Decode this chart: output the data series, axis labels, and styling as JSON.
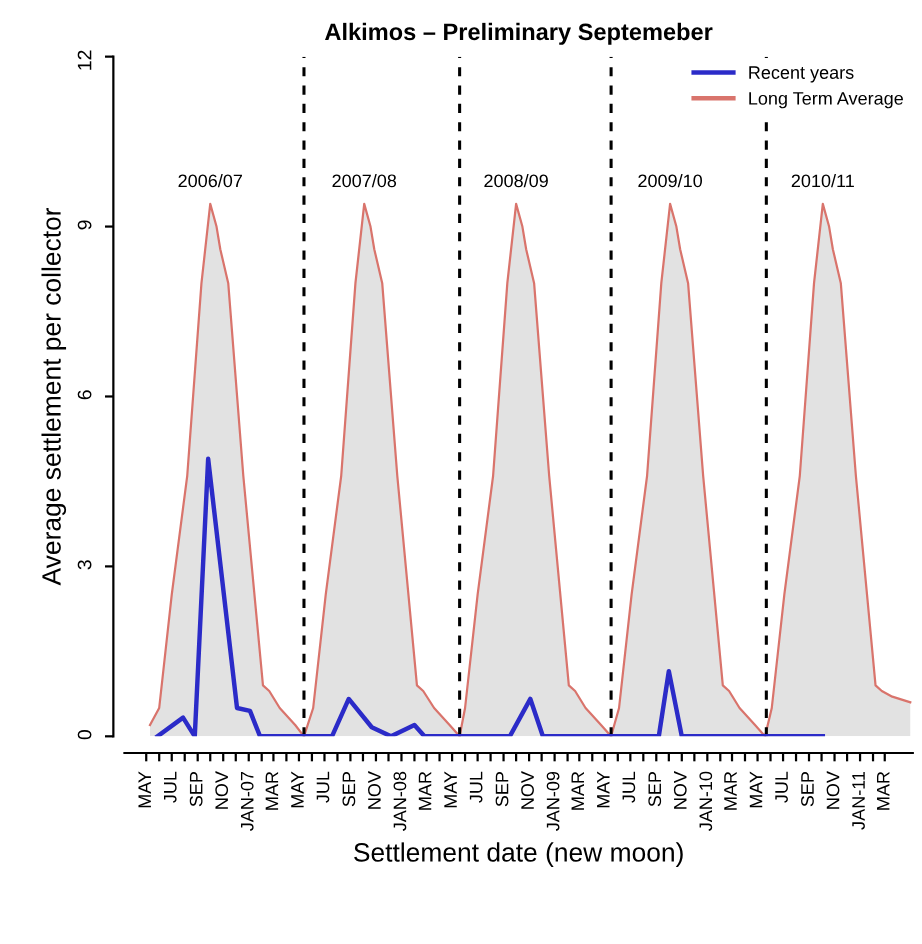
{
  "chart_data": {
    "type": "line",
    "title": "Alkimos – Preliminary Septemeber",
    "xlabel": "Settlement date (new moon)",
    "ylabel": "Average settlement per collector",
    "series": [
      {
        "name": "Long Term Average",
        "type": "area",
        "color": "#d9746c",
        "x": [
          "2006-05-10",
          "2006-06-01",
          "2006-07-01",
          "2006-08-07",
          "2006-09-10",
          "2006-10-01",
          "2006-10-16",
          "2006-10-25",
          "2006-11-13",
          "2006-12-19",
          "2007-02-04",
          "2007-02-19",
          "2007-03-16",
          "2007-04-22",
          "2007-05-13",
          "2007-06-04",
          "2007-07-04",
          "2007-08-10",
          "2007-09-13",
          "2007-10-04",
          "2007-10-19",
          "2007-10-28",
          "2007-11-16",
          "2007-12-22",
          "2008-02-07",
          "2008-02-22",
          "2008-03-19",
          "2008-04-25",
          "2008-05-19",
          "2008-06-01",
          "2008-07-01",
          "2008-08-07",
          "2008-09-10",
          "2008-10-01",
          "2008-10-16",
          "2008-10-25",
          "2008-11-13",
          "2008-12-19",
          "2009-02-04",
          "2009-02-19",
          "2009-03-16",
          "2009-04-22",
          "2009-05-16",
          "2009-06-04",
          "2009-07-04",
          "2009-08-10",
          "2009-09-13",
          "2009-10-04",
          "2009-10-19",
          "2009-10-28",
          "2009-11-16",
          "2009-12-22",
          "2010-02-07",
          "2010-02-22",
          "2010-03-19",
          "2010-04-25",
          "2010-05-19",
          "2010-06-04",
          "2010-07-04",
          "2010-08-10",
          "2010-09-13",
          "2010-10-04",
          "2010-10-19",
          "2010-10-28",
          "2010-11-16",
          "2010-12-22",
          "2011-02-07",
          "2011-02-22",
          "2011-03-19",
          "2011-05-01"
        ],
        "values": [
          0.2,
          0.5,
          2.5,
          4.6,
          8.0,
          9.4,
          9.0,
          8.6,
          8.0,
          4.6,
          0.9,
          0.8,
          0.5,
          0.2,
          0.0,
          0.5,
          2.5,
          4.6,
          8.0,
          9.4,
          9.0,
          8.6,
          8.0,
          4.6,
          0.9,
          0.8,
          0.5,
          0.2,
          0.0,
          0.5,
          2.5,
          4.6,
          8.0,
          9.4,
          9.0,
          8.6,
          8.0,
          4.6,
          0.9,
          0.8,
          0.5,
          0.2,
          0.0,
          0.5,
          2.5,
          4.6,
          8.0,
          9.4,
          9.0,
          8.6,
          8.0,
          4.6,
          0.9,
          0.8,
          0.5,
          0.2,
          0.0,
          0.5,
          2.5,
          4.6,
          8.0,
          9.4,
          9.0,
          8.6,
          8.0,
          4.6,
          0.9,
          0.8,
          0.7,
          0.6
        ]
      },
      {
        "name": "Recent years",
        "type": "line",
        "color": "#2b2bc8",
        "x": [
          "2006-05-28",
          "2006-07-28",
          "2006-08-25",
          "2006-09-26",
          "2006-12-04",
          "2007-01-04",
          "2007-01-28",
          "2007-07-19",
          "2007-08-28",
          "2007-10-22",
          "2007-12-07",
          "2008-02-01",
          "2008-02-25",
          "2008-09-16",
          "2008-11-04",
          "2008-12-04",
          "2009-09-07",
          "2009-10-01",
          "2009-11-01",
          "2010-10-04"
        ],
        "values": [
          0.0,
          0.33,
          0.0,
          4.9,
          0.5,
          0.45,
          0.0,
          0.0,
          0.66,
          0.16,
          0.0,
          0.2,
          0.0,
          0.0,
          0.66,
          0.0,
          0.0,
          1.15,
          0.0,
          0.0
        ]
      }
    ],
    "ref_lines": [
      {
        "axis": "x",
        "value": "2007-05-13",
        "line_style": "dashed",
        "color": "#000000"
      },
      {
        "axis": "x",
        "value": "2008-05-19",
        "line_style": "dashed",
        "color": "#000000"
      },
      {
        "axis": "x",
        "value": "2009-05-16",
        "line_style": "dashed",
        "color": "#000000"
      },
      {
        "axis": "x",
        "value": "2010-05-22",
        "line_style": "dashed",
        "color": "#000000"
      }
    ],
    "annotations": [
      "2006/07",
      "2007/08",
      "2008/09",
      "2009/10",
      "2010/11"
    ],
    "xlim": [
      "2006-03-10",
      "2011-05-07"
    ],
    "ylim": [
      0,
      12
    ],
    "yticks": [
      0,
      3,
      6,
      9,
      12
    ],
    "xticks": [
      {
        "value": "2006-05-01",
        "label": "MAY"
      },
      {
        "value": "2006-06-01",
        "label": null
      },
      {
        "value": "2006-07-01",
        "label": "JUL"
      },
      {
        "value": "2006-08-01",
        "label": null
      },
      {
        "value": "2006-09-01",
        "label": "SEP"
      },
      {
        "value": "2006-10-01",
        "label": null
      },
      {
        "value": "2006-11-01",
        "label": "NOV"
      },
      {
        "value": "2006-12-01",
        "label": null
      },
      {
        "value": "2007-01-01",
        "label": "JAN-07"
      },
      {
        "value": "2007-02-01",
        "label": null
      },
      {
        "value": "2007-03-01",
        "label": "MAR"
      },
      {
        "value": "2007-04-01",
        "label": null
      },
      {
        "value": "2007-05-01",
        "label": "MAY"
      },
      {
        "value": "2007-06-01",
        "label": null
      },
      {
        "value": "2007-07-01",
        "label": "JUL"
      },
      {
        "value": "2007-08-01",
        "label": null
      },
      {
        "value": "2007-09-01",
        "label": "SEP"
      },
      {
        "value": "2007-10-01",
        "label": null
      },
      {
        "value": "2007-11-01",
        "label": "NOV"
      },
      {
        "value": "2007-12-01",
        "label": null
      },
      {
        "value": "2008-01-01",
        "label": "JAN-08"
      },
      {
        "value": "2008-02-01",
        "label": null
      },
      {
        "value": "2008-03-01",
        "label": "MAR"
      },
      {
        "value": "2008-04-01",
        "label": null
      },
      {
        "value": "2008-05-01",
        "label": "MAY"
      },
      {
        "value": "2008-06-01",
        "label": null
      },
      {
        "value": "2008-07-01",
        "label": "JUL"
      },
      {
        "value": "2008-08-01",
        "label": null
      },
      {
        "value": "2008-09-01",
        "label": "SEP"
      },
      {
        "value": "2008-10-01",
        "label": null
      },
      {
        "value": "2008-11-01",
        "label": "NOV"
      },
      {
        "value": "2008-12-01",
        "label": null
      },
      {
        "value": "2009-01-01",
        "label": "JAN-09"
      },
      {
        "value": "2009-02-01",
        "label": null
      },
      {
        "value": "2009-03-01",
        "label": "MAR"
      },
      {
        "value": "2009-04-01",
        "label": null
      },
      {
        "value": "2009-05-01",
        "label": "MAY"
      },
      {
        "value": "2009-06-01",
        "label": null
      },
      {
        "value": "2009-07-01",
        "label": "JUL"
      },
      {
        "value": "2009-08-01",
        "label": null
      },
      {
        "value": "2009-09-01",
        "label": "SEP"
      },
      {
        "value": "2009-10-01",
        "label": null
      },
      {
        "value": "2009-11-01",
        "label": "NOV"
      },
      {
        "value": "2009-12-01",
        "label": null
      },
      {
        "value": "2010-01-01",
        "label": "JAN-10"
      },
      {
        "value": "2010-02-01",
        "label": null
      },
      {
        "value": "2010-03-01",
        "label": "MAR"
      },
      {
        "value": "2010-04-01",
        "label": null
      },
      {
        "value": "2010-05-01",
        "label": "MAY"
      },
      {
        "value": "2010-06-01",
        "label": null
      },
      {
        "value": "2010-07-01",
        "label": "JUL"
      },
      {
        "value": "2010-08-01",
        "label": null
      },
      {
        "value": "2010-09-01",
        "label": "SEP"
      },
      {
        "value": "2010-10-01",
        "label": null
      },
      {
        "value": "2010-11-01",
        "label": "NOV"
      },
      {
        "value": "2010-12-01",
        "label": null
      },
      {
        "value": "2011-01-01",
        "label": "JAN-11"
      },
      {
        "value": "2011-02-01",
        "label": null
      },
      {
        "value": "2011-03-01",
        "label": "MAR"
      }
    ],
    "legend": "top right",
    "grid": false,
    "line_style": "solid",
    "marker": "none"
  }
}
